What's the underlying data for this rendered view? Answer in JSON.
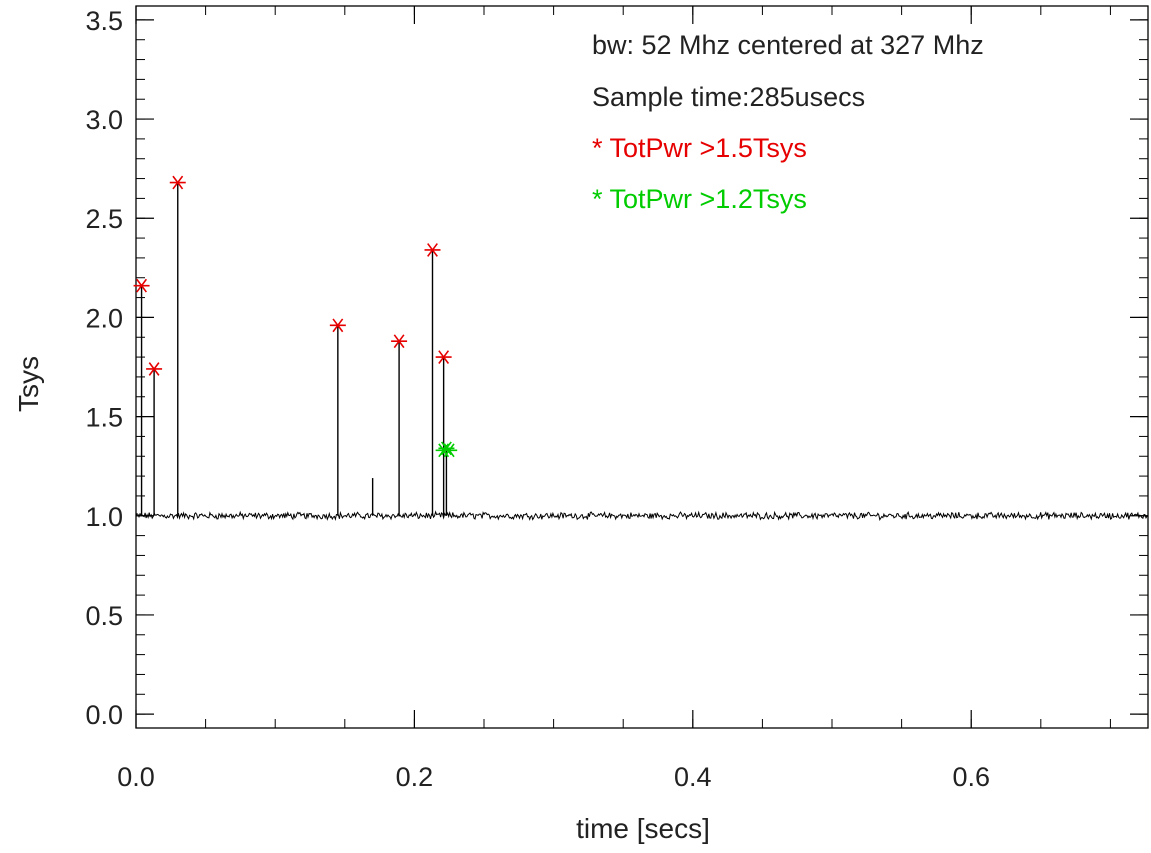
{
  "chart_data": {
    "type": "line",
    "xlabel": "time [secs]",
    "ylabel": "Tsys",
    "xlim": [
      0.0,
      0.727
    ],
    "ylim": [
      -0.07,
      3.57
    ],
    "x_ticks": [
      0.0,
      0.2,
      0.4,
      0.6
    ],
    "x_tick_labels": [
      "0.0",
      "0.2",
      "0.4",
      "0.6"
    ],
    "x_minor_step": 0.05,
    "y_ticks": [
      0.0,
      0.5,
      1.0,
      1.5,
      2.0,
      2.5,
      3.0,
      3.5
    ],
    "y_tick_labels": [
      "0.0",
      "0.5",
      "1.0",
      "1.5",
      "2.0",
      "2.5",
      "3.0",
      "3.5"
    ],
    "y_minor_step": 0.1,
    "grid": false,
    "baseline_level": 1.0,
    "spikes": [
      {
        "x": 0.004,
        "y": 2.16
      },
      {
        "x": 0.013,
        "y": 1.74
      },
      {
        "x": 0.03,
        "y": 2.68
      },
      {
        "x": 0.145,
        "y": 1.96
      },
      {
        "x": 0.17,
        "y": 1.19
      },
      {
        "x": 0.189,
        "y": 1.88
      },
      {
        "x": 0.213,
        "y": 2.34
      },
      {
        "x": 0.221,
        "y": 1.8
      },
      {
        "x": 0.223,
        "y": 1.34
      }
    ],
    "series": [
      {
        "name": "* TotPwr >1.5Tsys",
        "color": "#e60000",
        "marker": "asterisk",
        "points": [
          [
            0.004,
            2.16
          ],
          [
            0.013,
            1.74
          ],
          [
            0.03,
            2.68
          ],
          [
            0.145,
            1.96
          ],
          [
            0.189,
            1.88
          ],
          [
            0.213,
            2.34
          ],
          [
            0.221,
            1.8
          ]
        ]
      },
      {
        "name": "* TotPwr >1.2Tsys",
        "color": "#00cc00",
        "marker": "asterisk",
        "points": [
          [
            0.221,
            1.33
          ],
          [
            0.223,
            1.34
          ],
          [
            0.225,
            1.33
          ]
        ]
      }
    ],
    "annotations": [
      {
        "text": "bw: 52 Mhz centered at 327 Mhz",
        "color": "#222222"
      },
      {
        "text": "Sample time:285usecs",
        "color": "#222222"
      },
      {
        "text": "* TotPwr >1.5Tsys",
        "color": "#e60000"
      },
      {
        "text": "* TotPwr >1.2Tsys",
        "color": "#00cc00"
      }
    ]
  }
}
